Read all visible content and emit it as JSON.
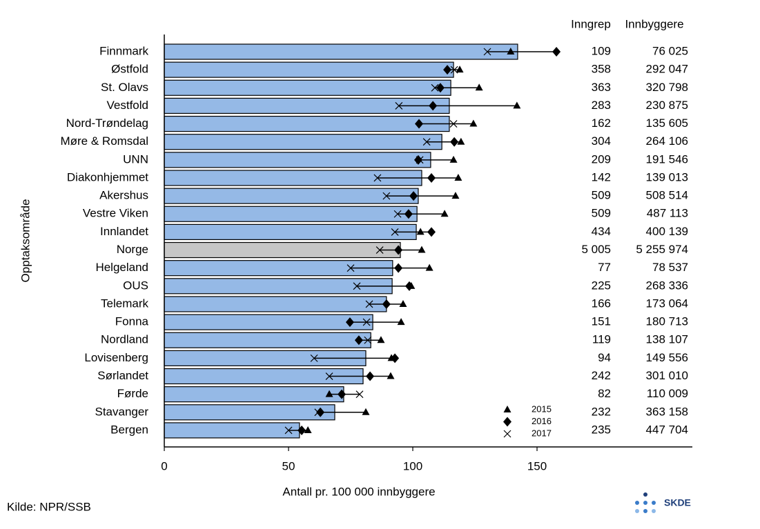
{
  "chart_data": {
    "type": "bar",
    "orientation": "horizontal",
    "y_label": "Opptaksområde",
    "x_label": "Antall pr. 100 000 innbyggere",
    "source": "Kilde: NPR/SSB",
    "logo": "SKDE",
    "categories": [
      "Finnmark",
      "Østfold",
      "St. Olavs",
      "Vestfold",
      "Nord-Trøndelag",
      "Møre & Romsdal",
      "UNN",
      "Diakonhjemmet",
      "Akershus",
      "Vestre Viken",
      "Innlandet",
      "Norge",
      "Helgeland",
      "OUS",
      "Telemark",
      "Fonna",
      "Nordland",
      "Lovisenberg",
      "Sørlandet",
      "Førde",
      "Stavanger",
      "Bergen"
    ],
    "values": [
      142.2,
      116.4,
      115.3,
      114.7,
      114.7,
      111.7,
      107.2,
      103.6,
      102.2,
      101.7,
      101.4,
      95,
      91.9,
      91.7,
      89.4,
      83.9,
      83.1,
      81.1,
      80,
      72.2,
      68.6,
      54.4
    ],
    "colors": [
      "#95b9e6",
      "#95b9e6",
      "#95b9e6",
      "#95b9e6",
      "#95b9e6",
      "#95b9e6",
      "#95b9e6",
      "#95b9e6",
      "#95b9e6",
      "#95b9e6",
      "#95b9e6",
      "#c6c6c6",
      "#95b9e6",
      "#95b9e6",
      "#95b9e6",
      "#95b9e6",
      "#95b9e6",
      "#95b9e6",
      "#95b9e6",
      "#95b9e6",
      "#95b9e6",
      "#95b9e6"
    ],
    "series": [
      {
        "name": "2015",
        "marker": "triangle",
        "color": "#000000",
        "values": [
          139.4,
          118.9,
          126.7,
          141.9,
          124.4,
          119.4,
          116.4,
          118.3,
          117.2,
          112.8,
          103.1,
          103.6,
          106.7,
          99.4,
          96.1,
          95.3,
          87.2,
          91.4,
          91.1,
          66.4,
          81.1,
          57.8
        ]
      },
      {
        "name": "2016",
        "marker": "diamond",
        "color": "#000000",
        "values": [
          157.8,
          113.9,
          111.1,
          108.1,
          102.5,
          116.7,
          102.2,
          107.5,
          100.3,
          98.3,
          107.5,
          94.2,
          94.2,
          98.6,
          89.4,
          74.7,
          78.3,
          92.8,
          82.8,
          71.4,
          62.8,
          55.3
        ]
      },
      {
        "name": "2017",
        "marker": "x",
        "color": "#000000",
        "values": [
          130,
          116.7,
          108.9,
          94.4,
          116.4,
          105.6,
          102.8,
          85.8,
          89.4,
          93.9,
          92.8,
          86.7,
          75,
          77.5,
          82.5,
          81.4,
          81.9,
          60.3,
          66.4,
          78.6,
          61.9,
          50
        ]
      }
    ],
    "columns": [
      {
        "name": "Inngrep",
        "values": [
          109,
          358,
          363,
          283,
          162,
          304,
          209,
          142,
          509,
          509,
          434,
          5005,
          77,
          225,
          166,
          151,
          119,
          94,
          242,
          82,
          232,
          235
        ],
        "value_labels": [
          "109",
          "358",
          "363",
          "283",
          "162",
          "304",
          "209",
          "142",
          "509",
          "509",
          "434",
          "5 005",
          "77",
          "225",
          "166",
          "151",
          "119",
          "94",
          "242",
          "82",
          "232",
          "235"
        ]
      },
      {
        "name": "Innbyggere",
        "values": [
          76025,
          292047,
          320798,
          230875,
          135605,
          264106,
          191546,
          139013,
          508514,
          487113,
          400139,
          5255974,
          78537,
          268336,
          173064,
          180713,
          138107,
          149556,
          301010,
          110009,
          363158,
          447704
        ],
        "value_labels": [
          "76 025",
          "292 047",
          "320 798",
          "230 875",
          "135 605",
          "264 106",
          "191 546",
          "139 013",
          "508 514",
          "487 113",
          "400 139",
          "5 255 974",
          "78 537",
          "268 336",
          "173 064",
          "180 713",
          "138 107",
          "149 556",
          "301 010",
          "110 009",
          "363 158",
          "447 704"
        ]
      }
    ],
    "xlim": [
      0,
      212.5
    ],
    "xticks": [
      0,
      50,
      100,
      150
    ]
  }
}
